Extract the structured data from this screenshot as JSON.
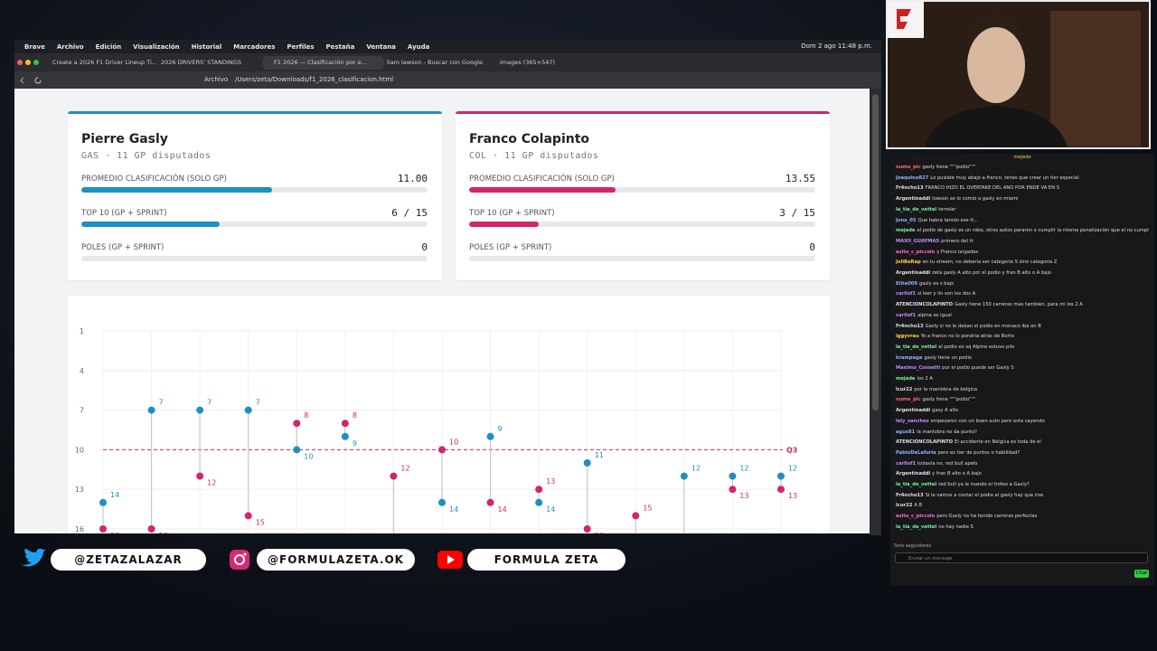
{
  "menubar": {
    "items": [
      "Brave",
      "Archivo",
      "Edición",
      "Visualización",
      "Historial",
      "Marcadores",
      "Perfiles",
      "Pestaña",
      "Ventana",
      "Ayuda"
    ],
    "clock": "Dom 2 ago 11:48 p.m."
  },
  "tabs": [
    "Create a 2026 F1 Driver Lineup Ti...",
    "2026 DRIVERS' STANDINGS",
    "F1 2026 — Clasificación por e...",
    "liam lawson - Buscar con Google",
    "images (365×547)"
  ],
  "address": {
    "label": "Archivo",
    "url": "/Users/zeta/Downloads/f1_2026_clasificacion.html"
  },
  "cards": [
    {
      "name": "Pierre Gasly",
      "meta": "GAS · 11 GP disputados",
      "color": "#1f8fbf",
      "stats": [
        {
          "label": "PROMEDIO CLASIFICACIÓN (SOLO GP)",
          "value": "11.00"
        },
        {
          "label": "TOP 10 (GP + SPRINT)",
          "value": "6 / 15"
        },
        {
          "label": "POLES (GP + SPRINT)",
          "value": "0"
        }
      ]
    },
    {
      "name": "Franco Colapinto",
      "meta": "COL · 11 GP disputados",
      "color": "#d4246e",
      "stats": [
        {
          "label": "PROMEDIO CLASIFICACIÓN (SOLO GP)",
          "value": "13.55"
        },
        {
          "label": "TOP 10 (GP + SPRINT)",
          "value": "3 / 15"
        },
        {
          "label": "POLES (GP + SPRINT)",
          "value": "0"
        }
      ]
    }
  ],
  "chart": {
    "type": "lollipop",
    "ylim": [
      1,
      16
    ],
    "yticks": [
      1,
      4,
      7,
      10,
      13,
      16
    ],
    "reference": {
      "label": "Q3",
      "value": 10
    },
    "series": [
      {
        "color": "#1f8fbf",
        "values": [
          14,
          7,
          7,
          7,
          10,
          9,
          null,
          14,
          9,
          14,
          11,
          null,
          12,
          12,
          12
        ]
      },
      {
        "color": "#d4246e",
        "values": [
          16,
          16,
          12,
          15,
          8,
          8,
          12,
          10,
          14,
          13,
          16,
          15,
          null,
          13,
          13
        ]
      }
    ]
  },
  "social": [
    "@ZETAZALAZAR",
    "@FORMULAZETA.OK",
    "FORMULA ZETA"
  ],
  "chat": {
    "pinned": "mejede",
    "messages": [
      {
        "user": "numo_plc",
        "text": "gasly tiene \"\"\"podio\"\"\"",
        "color": "#ff6a6a"
      },
      {
        "user": "Joaquino827",
        "text": "Lo puslate muy abajo a franco, tenes que crear un tier especial",
        "color": "#8ab4ff"
      },
      {
        "user": "Fr4ncho13",
        "text": "FRANCO HIZO EL OVERTAKE DEL AÑO POR ENDE VA EN S",
        "color": "#e0e0e0"
      },
      {
        "user": "Argentinaddi",
        "text": "lowson se lo comió a gasly en miami",
        "color": "#e0e0e0"
      },
      {
        "user": "la_tia_de_vettel",
        "text": "terrolar",
        "color": "#7cf0a0"
      },
      {
        "user": "Jona_05",
        "text": "Que habra tenido ese tt...",
        "color": "#8ab4ff"
      },
      {
        "user": "mejede",
        "text": "el podio de gasly es un robo, otros autos pararon x cumplir la misma penalización que el no cumplio",
        "color": "#7cf0a0"
      },
      {
        "user": "MAXII_GUAYMAS",
        "text": "primero del tt",
        "color": "#c08cff"
      },
      {
        "user": "asito_c_piccolo",
        "text": "y Franco largadas",
        "color": "#ff6ad5"
      },
      {
        "user": "JoliBeRap",
        "text": "en tu stream, no debería ser categoria S sino categoria Z",
        "color": "#ffd24a"
      },
      {
        "user": "Argentinaddi",
        "text": "zeta gasly A alto por el podio y fran B alto o A bajo",
        "color": "#e0e0e0"
      },
      {
        "user": "Elite009",
        "text": "gasly es s bajo",
        "color": "#8ab4ff"
      },
      {
        "user": "carllof1",
        "text": "si leer y lin son los dos A",
        "color": "#c08cff"
      },
      {
        "user": "ATENCIONCOLAPINTO",
        "text": "Gasly tiene 150 carreras mas tambien, para mi los 2 A",
        "color": "#e0e0e0"
      },
      {
        "user": "carllof1",
        "text": "alpine es igual",
        "color": "#c08cff"
      },
      {
        "user": "Fr4ncho13",
        "text": "Gasly si no le daban el podio en monaco iba en B",
        "color": "#e0e0e0"
      },
      {
        "user": "iggyvrau",
        "text": "Yo a franco no lo pondría atrás de Borto",
        "color": "#ffd24a"
      },
      {
        "user": "la_tia_de_vettel",
        "text": "el podio es xq Alpine estuvo pilo",
        "color": "#7cf0a0"
      },
      {
        "user": "krampaga",
        "text": "gasly tiene un podio",
        "color": "#8ab4ff"
      },
      {
        "user": "Maximo_Cossetti",
        "text": "por el podio puede ser Gasly S",
        "color": "#c08cff"
      },
      {
        "user": "mejede",
        "text": "los 2 A",
        "color": "#7cf0a0"
      },
      {
        "user": "lcur22",
        "text": "por la maniobra de belgica",
        "color": "#e0e0e0"
      },
      {
        "user": "numo_plc",
        "text": "gasly tiene \"\"\"podio\"\"\"",
        "color": "#ff6a6a"
      },
      {
        "user": "Argentinaddi",
        "text": "gasy A alto",
        "color": "#e0e0e0"
      },
      {
        "user": "lely_sanchez",
        "text": "empezaron con un buen auto pero esta cayendo",
        "color": "#c08cff"
      },
      {
        "user": "agus81",
        "text": "la maniobra no da punto?",
        "color": "#8ab4ff"
      },
      {
        "user": "ATENCIONCOLAPINTO",
        "text": "El accidente en Bélgica es toda de el",
        "color": "#e0e0e0"
      },
      {
        "user": "PabloDeLafuria",
        "text": "pero es tier de puntos o habilidad?",
        "color": "#8ab4ff"
      },
      {
        "user": "carllof1",
        "text": "todavia no, red bull apelo",
        "color": "#c08cff"
      },
      {
        "user": "Argentinaddi",
        "text": "y fran B alto o A bajo",
        "color": "#e0e0e0"
      },
      {
        "user": "la_tia_de_vettel",
        "text": "red bull ya le mando el trofeo a Gasly?",
        "color": "#7cf0a0"
      },
      {
        "user": "Fr4ncho13",
        "text": "Si le vamos a contar el podio al gasly hay que irse",
        "color": "#e0e0e0"
      },
      {
        "user": "lcur22",
        "text": "A B",
        "color": "#e0e0e0"
      },
      {
        "user": "asito_c_piccolo",
        "text": "pero Gasly no ha tenido carreras perfectas",
        "color": "#ff6ad5"
      },
      {
        "user": "la_tia_de_vettel",
        "text": "no hay nadie S",
        "color": "#7cf0a0"
      }
    ],
    "mode": "Solo seguidores",
    "placeholder": "Enviar un mensaje",
    "button": "Chat"
  }
}
